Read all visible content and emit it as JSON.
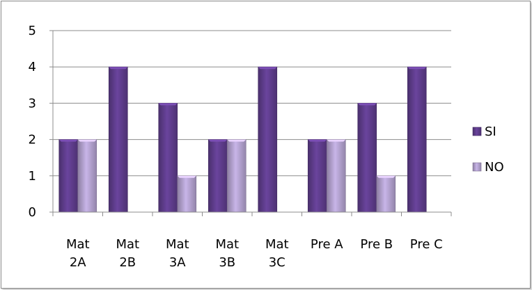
{
  "chart_data": {
    "type": "bar",
    "categories": [
      [
        "Mat",
        "2A"
      ],
      [
        "Mat",
        "2B"
      ],
      [
        "Mat",
        "3A"
      ],
      [
        "Mat",
        "3B"
      ],
      [
        "Mat",
        "3C"
      ],
      [
        "Pre A"
      ],
      [
        "Pre B"
      ],
      [
        "Pre C"
      ]
    ],
    "series": [
      {
        "name": "SI",
        "values": [
          2,
          4,
          3,
          2,
          4,
          2,
          3,
          4
        ],
        "color": "#5f3d8c"
      },
      {
        "name": "NO",
        "values": [
          2,
          0,
          1,
          2,
          0,
          2,
          1,
          0
        ],
        "color": "#b3a2cf"
      }
    ],
    "yticks": [
      "0",
      "1",
      "2",
      "3",
      "4",
      "5"
    ],
    "ylim": [
      0,
      5
    ],
    "grid": true,
    "legend": "right",
    "title": "",
    "xlabel": "",
    "ylabel": ""
  }
}
